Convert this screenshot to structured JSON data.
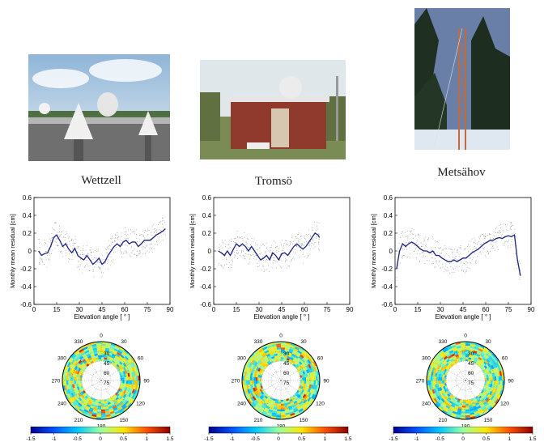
{
  "sites": [
    {
      "name": "Wettzell"
    },
    {
      "name": "Tromsö"
    },
    {
      "name": "Metsähov"
    }
  ],
  "colors": {
    "line": "#1a237e",
    "scatter": "#8a8a8a"
  },
  "chart_data": [
    {
      "type": "line",
      "xlabel": "Elevation angle [ ° ]",
      "ylabel": "Monthly mean residual [cm]",
      "xlim": [
        0,
        90
      ],
      "ylim": [
        -0.6,
        0.6
      ],
      "xticks": [
        "0",
        "15",
        "30",
        "45",
        "60",
        "75",
        "90"
      ],
      "yticks": [
        "-0.6",
        "-0.4",
        "-0.2",
        "0",
        "0.2",
        "0.4",
        "0.6"
      ],
      "x": [
        3,
        5,
        7,
        9,
        11,
        13,
        15,
        17,
        19,
        21,
        23,
        25,
        27,
        29,
        31,
        33,
        35,
        37,
        39,
        41,
        43,
        45,
        47,
        49,
        51,
        53,
        55,
        57,
        59,
        61,
        63,
        65,
        67,
        69,
        71,
        73,
        75,
        77,
        79,
        81,
        83,
        85,
        87
      ],
      "values": [
        0.0,
        -0.05,
        -0.03,
        -0.02,
        0.05,
        0.15,
        0.18,
        0.12,
        0.05,
        0.08,
        0.02,
        -0.02,
        0.03,
        -0.05,
        -0.08,
        -0.1,
        -0.05,
        -0.1,
        -0.15,
        -0.12,
        -0.08,
        -0.15,
        -0.12,
        -0.05,
        0.0,
        0.05,
        0.08,
        0.05,
        0.1,
        0.12,
        0.08,
        0.1,
        0.1,
        0.05,
        0.08,
        0.12,
        0.12,
        0.12,
        0.15,
        0.18,
        0.2,
        0.22,
        0.25
      ]
    },
    {
      "type": "line",
      "xlabel": "Elevation angle [ ° ]",
      "ylabel": "Monthly mean residual [cm]",
      "xlim": [
        0,
        90
      ],
      "ylim": [
        -0.6,
        0.6
      ],
      "xticks": [
        "0",
        "15",
        "30",
        "45",
        "60",
        "75",
        "90"
      ],
      "yticks": [
        "-0.6",
        "-0.4",
        "-0.2",
        "0",
        "0.2",
        "0.4",
        "0.6"
      ],
      "x": [
        3,
        5,
        7,
        9,
        11,
        13,
        15,
        17,
        19,
        21,
        23,
        25,
        27,
        29,
        31,
        33,
        35,
        37,
        39,
        41,
        43,
        45,
        47,
        49,
        51,
        53,
        55,
        57,
        59,
        61,
        63,
        65,
        67,
        69,
        70
      ],
      "values": [
        0.0,
        -0.02,
        -0.05,
        0.0,
        -0.05,
        0.02,
        0.08,
        0.05,
        0.08,
        0.05,
        0.0,
        0.05,
        0.0,
        -0.05,
        -0.1,
        -0.08,
        -0.05,
        -0.1,
        -0.02,
        -0.05,
        -0.1,
        -0.03,
        -0.02,
        -0.05,
        0.0,
        0.05,
        0.08,
        0.05,
        0.02,
        0.05,
        0.1,
        0.15,
        0.2,
        0.18,
        0.15
      ]
    },
    {
      "type": "line",
      "xlabel": "Elevation angle [ ° ]",
      "ylabel": "Monthly mean residual [cm]",
      "xlim": [
        0,
        90
      ],
      "ylim": [
        -0.6,
        0.6
      ],
      "xticks": [
        "0",
        "15",
        "30",
        "45",
        "60",
        "75",
        "90"
      ],
      "yticks": [
        "-0.6",
        "-0.4",
        "-0.2",
        "0",
        "0.2",
        "0.4",
        "0.6"
      ],
      "x": [
        1,
        3,
        5,
        7,
        9,
        11,
        13,
        15,
        17,
        19,
        21,
        23,
        25,
        27,
        29,
        31,
        33,
        35,
        37,
        39,
        41,
        43,
        45,
        47,
        49,
        51,
        53,
        55,
        57,
        59,
        61,
        63,
        65,
        67,
        69,
        71,
        73,
        75,
        77,
        79,
        81,
        83
      ],
      "values": [
        -0.2,
        0.0,
        0.08,
        0.05,
        0.08,
        0.1,
        0.08,
        0.05,
        0.02,
        0.0,
        0.0,
        -0.02,
        0.0,
        -0.05,
        -0.05,
        -0.08,
        -0.1,
        -0.12,
        -0.12,
        -0.1,
        -0.12,
        -0.1,
        -0.08,
        -0.08,
        -0.05,
        -0.02,
        0.0,
        0.02,
        0.05,
        0.08,
        0.1,
        0.12,
        0.12,
        0.14,
        0.15,
        0.14,
        0.16,
        0.17,
        0.16,
        0.18,
        -0.1,
        -0.28
      ]
    }
  ],
  "polar": {
    "azimuth_labels": [
      "0",
      "30",
      "60",
      "90",
      "120",
      "150",
      "180",
      "210",
      "240",
      "270",
      "300",
      "330"
    ],
    "elevation_labels": [
      "30",
      "45",
      "60",
      "75"
    ]
  },
  "colorbar": {
    "ticks": [
      "-1.5",
      "-1",
      "-0.5",
      "0",
      "0.5",
      "1",
      "1.5"
    ],
    "stops": [
      "#00008f",
      "#0050ff",
      "#00c8ff",
      "#9affa0",
      "#ffe600",
      "#ff5000",
      "#8f0000"
    ]
  }
}
